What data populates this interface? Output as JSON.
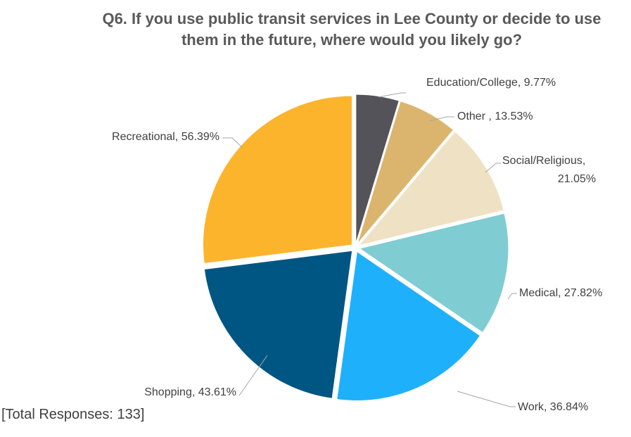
{
  "title_lines": [
    "Q6. If you use public transit services in Lee County or decide to use",
    "them in the future, where would you likely go?"
  ],
  "footer": "[Total Responses: 133]",
  "chart_data": {
    "type": "pie",
    "title": "Q6. If you use public transit services in Lee County or decide to use them in the future, where would you likely go?",
    "slices": [
      {
        "name": "Education/College",
        "value": 9.77,
        "label_lines": [
          "Education/College, 9.77%"
        ],
        "color": "#545359"
      },
      {
        "name": "Other",
        "value": 13.53,
        "label_lines": [
          "Other , 13.53%"
        ],
        "color": "#dbb56e"
      },
      {
        "name": "Social/Religious",
        "value": 21.05,
        "label_lines": [
          "Social/Religious,",
          "21.05%"
        ],
        "color": "#efe2c4"
      },
      {
        "name": "Medical",
        "value": 27.82,
        "label_lines": [
          "Medical, 27.82%"
        ],
        "color": "#7fcdd3"
      },
      {
        "name": "Work",
        "value": 36.84,
        "label_lines": [
          "Work, 36.84%"
        ],
        "color": "#1fb0fc"
      },
      {
        "name": "Shopping",
        "value": 43.61,
        "label_lines": [
          "Shopping, 43.61%"
        ],
        "color": "#005683"
      },
      {
        "name": "Recreational",
        "value": 56.39,
        "label_lines": [
          "Recreational, 56.39%"
        ],
        "color": "#fcb42c"
      }
    ]
  }
}
